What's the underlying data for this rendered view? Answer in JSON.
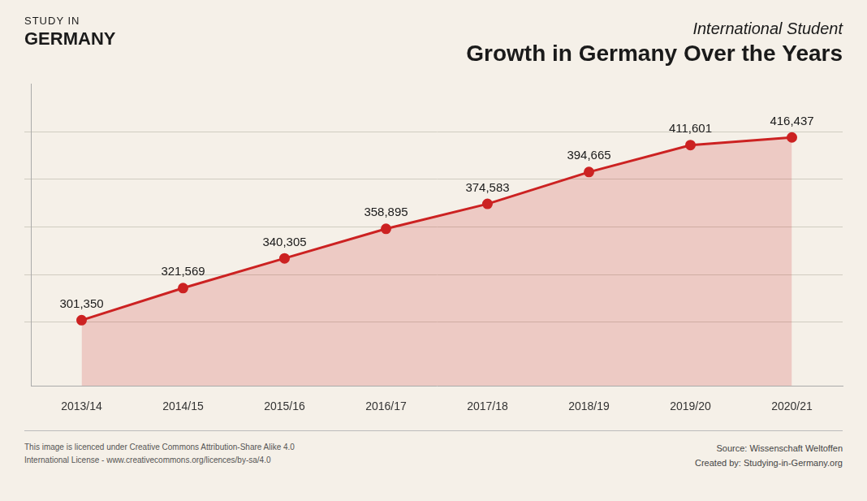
{
  "chart_data": {
    "type": "line",
    "title": "International Student",
    "subtitle": "Growth in Germany Over the Years",
    "categories": [
      "2013/14",
      "2014/15",
      "2015/16",
      "2016/17",
      "2017/18",
      "2018/19",
      "2019/20",
      "2020/21"
    ],
    "values": [
      301350,
      321569,
      340305,
      358895,
      374583,
      394665,
      411601,
      416437
    ],
    "value_labels": [
      "301,350",
      "321,569",
      "340,305",
      "358,895",
      "374,583",
      "394,665",
      "411,601",
      "416,437"
    ],
    "data_labels": true,
    "color": "#cc2222",
    "marker": "circle",
    "ylim": [
      260000,
      450000
    ],
    "yticks": [
      300000,
      330000,
      360000,
      390000,
      420000
    ],
    "grid": true,
    "tick_labels": "x",
    "annotations": [
      "STUDY IN",
      "GERMANY",
      "Source: Wissenschaft Weltoffen",
      "Created by: Studying-in-Germany.org",
      "This image is licenced under Creative Commons Attribution-Share Alike 4.0",
      "International License - www.creativecommons.org/licences/by-sa/4.0"
    ]
  }
}
